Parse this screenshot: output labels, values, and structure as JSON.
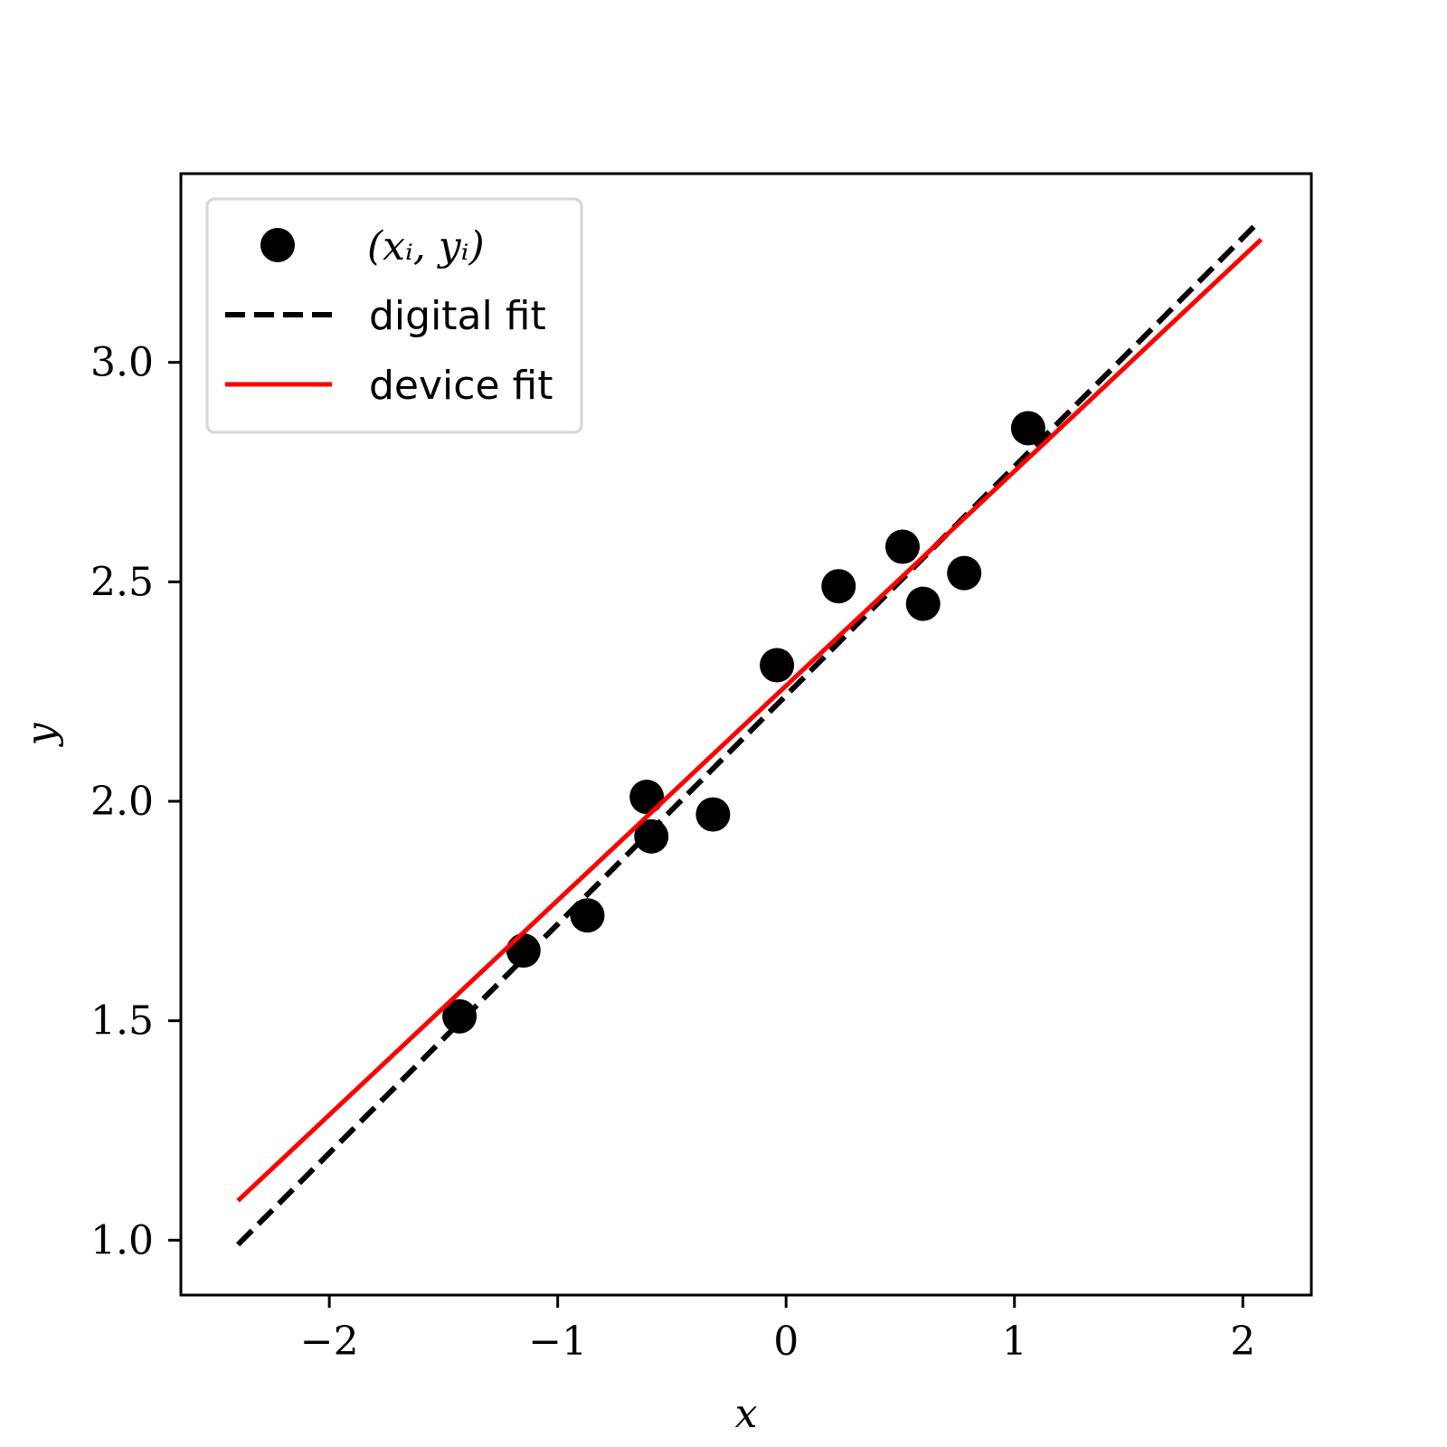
{
  "chart_data": {
    "type": "scatter",
    "xlabel": "x",
    "ylabel": "y",
    "xlim": [
      -2.65,
      2.3
    ],
    "ylim": [
      0.875,
      3.43
    ],
    "grid": false,
    "legend_placement": "top-left",
    "x_ticks": [
      {
        "value": -2,
        "label": "−2"
      },
      {
        "value": -1,
        "label": "−1"
      },
      {
        "value": 0,
        "label": "0"
      },
      {
        "value": 1,
        "label": "1"
      },
      {
        "value": 2,
        "label": "2"
      }
    ],
    "y_ticks": [
      {
        "value": 1.0,
        "label": "1.0"
      },
      {
        "value": 1.5,
        "label": "1.5"
      },
      {
        "value": 2.0,
        "label": "2.0"
      },
      {
        "value": 2.5,
        "label": "2.5"
      },
      {
        "value": 3.0,
        "label": "3.0"
      }
    ],
    "points": {
      "name": "(xᵢ, yᵢ)",
      "color": "#000000",
      "x": [
        -1.43,
        -1.15,
        -0.87,
        -0.61,
        -0.59,
        -0.32,
        -0.04,
        0.23,
        0.51,
        0.6,
        0.78,
        1.06
      ],
      "y": [
        1.51,
        1.66,
        1.74,
        2.01,
        1.92,
        1.97,
        2.31,
        2.49,
        2.58,
        2.45,
        2.52,
        2.85
      ]
    },
    "lines": [
      {
        "name": "digital fit",
        "color": "#000000",
        "style": "dashed",
        "x": [
          -2.4,
          2.05
        ],
        "y": [
          0.99,
          3.31
        ]
      },
      {
        "name": "device fit",
        "color": "#ff0000",
        "style": "solid",
        "x": [
          -2.4,
          2.08
        ],
        "y": [
          1.09,
          3.28
        ]
      }
    ]
  }
}
